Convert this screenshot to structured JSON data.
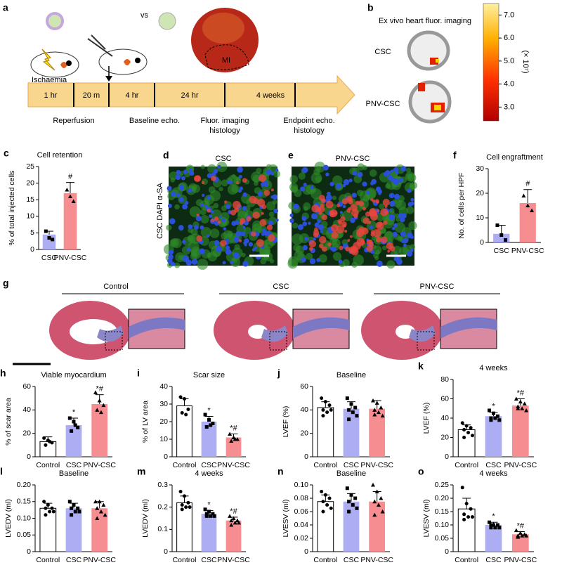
{
  "timeline": {
    "panel": "a",
    "vs": "vs",
    "ischaemia": "Ischaemia",
    "mi": "MI",
    "segments": [
      "1 hr",
      "20 m",
      "4 hr",
      "24 hr",
      "4 weeks"
    ],
    "events": [
      [
        "Reperfusion"
      ],
      [
        "Baseline echo."
      ],
      [
        "Fluor. imaging",
        "histology"
      ],
      [
        "Endpoint echo.",
        "histology"
      ]
    ]
  },
  "imaging": {
    "panel": "b",
    "title": "Ex vivo heart fluor. imaging",
    "rows": [
      "CSC",
      "PNV-CSC"
    ],
    "colorbar": {
      "range": [
        2.4,
        7.5
      ],
      "ticks": [
        {
          "value": 7,
          "label": "7.0"
        },
        {
          "value": 6,
          "label": "6.0"
        },
        {
          "value": 5,
          "label": "5.0"
        },
        {
          "value": 4,
          "label": "4.0"
        },
        {
          "value": 3,
          "label": "3.0"
        }
      ],
      "unit": "(× 10⁷)"
    }
  },
  "micrographs": {
    "stain": "CSC DAPI α-SA",
    "panels": [
      {
        "panel": "d",
        "title": "CSC"
      },
      {
        "panel": "e",
        "title": "PNV-CSC"
      }
    ]
  },
  "histology": {
    "panel": "g",
    "groups": [
      "Control",
      "CSC",
      "PNV-CSC"
    ]
  },
  "chart_data": [
    {
      "type": "bar",
      "panel": "c",
      "title": "Cell retention",
      "ylabel": "% of total injected cells",
      "categories": [
        "CSC",
        "PNV-CSC"
      ],
      "values": [
        4.5,
        17
      ],
      "errors": [
        1,
        3.2
      ],
      "points": [
        [
          5.5,
          3.5,
          3
        ],
        [
          18,
          16,
          14.5
        ]
      ],
      "colors": [
        "#a9a9f2",
        "#f4878b"
      ],
      "annotations": [
        null,
        "#"
      ],
      "ylim": [
        0,
        25
      ],
      "yticks": [
        0,
        5,
        10,
        15,
        20,
        25
      ]
    },
    {
      "type": "bar",
      "panel": "f",
      "title": "Cell engraftment",
      "ylabel": "No. of cells per HPF",
      "categories": [
        "CSC",
        "PNV-CSC"
      ],
      "values": [
        3.5,
        16
      ],
      "errors": [
        3.5,
        5.5
      ],
      "points": [
        [
          7,
          3,
          1
        ],
        [
          19,
          15,
          13
        ]
      ],
      "colors": [
        "#a9a9f2",
        "#f4878b"
      ],
      "annotations": [
        null,
        "#"
      ],
      "ylim": [
        0,
        30
      ],
      "yticks": [
        0,
        10,
        20,
        30
      ]
    },
    {
      "type": "bar",
      "panel": "h",
      "title": "Viable myocardium",
      "ylabel": "% of scar area",
      "categories": [
        "Control",
        "CSC",
        "PNV-CSC"
      ],
      "values": [
        13,
        27,
        45
      ],
      "errors": [
        4,
        6,
        8
      ],
      "points": [
        [
          16,
          14,
          12,
          10,
          13
        ],
        [
          33,
          30,
          25,
          22,
          27
        ],
        [
          55,
          48,
          44,
          40,
          38
        ]
      ],
      "colors": [
        "#ffffff",
        "#a9a9f2",
        "#f4878b"
      ],
      "annotations": [
        null,
        "*",
        "*#"
      ],
      "ylim": [
        0,
        60
      ],
      "yticks": [
        0,
        20,
        40,
        60
      ]
    },
    {
      "type": "bar",
      "panel": "i",
      "title": "Scar size",
      "ylabel": "% of LV area",
      "categories": [
        "Control",
        "CSC",
        "PNV-CSC"
      ],
      "values": [
        29,
        20,
        11
      ],
      "errors": [
        4,
        3,
        2
      ],
      "points": [
        [
          34,
          33,
          27,
          25,
          24
        ],
        [
          24,
          21,
          19,
          17,
          18
        ],
        [
          13,
          11,
          10,
          9,
          10
        ]
      ],
      "colors": [
        "#ffffff",
        "#a9a9f2",
        "#f4878b"
      ],
      "annotations": [
        null,
        "*",
        "*#"
      ],
      "ylim": [
        0,
        40
      ],
      "yticks": [
        0,
        10,
        20,
        30,
        40
      ]
    },
    {
      "type": "bar",
      "panel": "j",
      "title": "Baseline",
      "ylabel": "LVEF (%)",
      "categories": [
        "Control",
        "CSC",
        "PNV-CSC"
      ],
      "values": [
        42,
        41,
        41
      ],
      "errors": [
        5,
        6,
        7
      ],
      "points": [
        [
          50,
          47,
          44,
          40,
          38,
          40,
          35
        ],
        [
          50,
          45,
          42,
          40,
          38,
          35,
          32
        ],
        [
          48,
          46,
          42,
          40,
          38,
          35,
          36
        ]
      ],
      "colors": [
        "#ffffff",
        "#a9a9f2",
        "#f4878b"
      ],
      "annotations": [
        null,
        null,
        null
      ],
      "ylim": [
        0,
        60
      ],
      "yticks": [
        0,
        20,
        40,
        60
      ]
    },
    {
      "type": "bar",
      "panel": "k",
      "title": "4 weeks",
      "ylabel": "LVEF (%)",
      "categories": [
        "Control",
        "CSC",
        "PNV-CSC"
      ],
      "values": [
        28,
        42,
        53
      ],
      "errors": [
        5,
        4,
        7
      ],
      "points": [
        [
          35,
          32,
          30,
          28,
          25,
          22,
          20
        ],
        [
          48,
          45,
          42,
          40,
          40,
          38,
          38
        ],
        [
          60,
          57,
          55,
          52,
          50,
          48,
          50
        ]
      ],
      "colors": [
        "#ffffff",
        "#a9a9f2",
        "#f4878b"
      ],
      "annotations": [
        null,
        "*",
        "*#"
      ],
      "ylim": [
        0,
        80
      ],
      "yticks": [
        0,
        20,
        40,
        60,
        80
      ]
    },
    {
      "type": "bar",
      "panel": "l",
      "title": "Baseline",
      "ylabel": "LVEDV (ml)",
      "categories": [
        "Control",
        "CSC",
        "PNV-CSC"
      ],
      "values": [
        0.13,
        0.13,
        0.13
      ],
      "errors": [
        0.015,
        0.015,
        0.02
      ],
      "points": [
        [
          0.15,
          0.14,
          0.13,
          0.13,
          0.12,
          0.12,
          0.11
        ],
        [
          0.15,
          0.14,
          0.13,
          0.13,
          0.12,
          0.12,
          0.11
        ],
        [
          0.15,
          0.15,
          0.14,
          0.13,
          0.12,
          0.11,
          0.1
        ]
      ],
      "colors": [
        "#ffffff",
        "#a9a9f2",
        "#f4878b"
      ],
      "annotations": [
        null,
        null,
        null
      ],
      "ylim": [
        0,
        0.2
      ],
      "yticks": [
        0,
        0.05,
        {
          "value": 0.1,
          "label": "0.10"
        },
        0.15,
        {
          "value": 0.2,
          "label": "0.20"
        }
      ]
    },
    {
      "type": "bar",
      "panel": "m",
      "title": "4 weeks",
      "ylabel": "LVEDV (ml)",
      "categories": [
        "Control",
        "CSC",
        "PNV-CSC"
      ],
      "values": [
        0.22,
        0.17,
        0.14
      ],
      "errors": [
        0.03,
        0.015,
        0.015
      ],
      "points": [
        [
          0.27,
          0.25,
          0.22,
          0.21,
          0.2,
          0.2,
          0.19
        ],
        [
          0.19,
          0.18,
          0.17,
          0.17,
          0.16,
          0.16,
          0.16
        ],
        [
          0.16,
          0.15,
          0.14,
          0.14,
          0.13,
          0.13,
          0.12
        ]
      ],
      "colors": [
        "#ffffff",
        "#a9a9f2",
        "#f4878b"
      ],
      "annotations": [
        null,
        "*",
        "*#"
      ],
      "ylim": [
        0,
        0.3
      ],
      "yticks": [
        0,
        0.1,
        0.2,
        0.3
      ]
    },
    {
      "type": "bar",
      "panel": "n",
      "title": "Baseline",
      "ylabel": "LVESV (ml)",
      "categories": [
        "Control",
        "CSC",
        "PNV-CSC"
      ],
      "values": [
        0.075,
        0.075,
        0.075
      ],
      "errors": [
        0.01,
        0.012,
        0.015
      ],
      "points": [
        [
          0.09,
          0.085,
          0.08,
          0.075,
          0.07,
          0.065,
          0.06
        ],
        [
          0.095,
          0.085,
          0.08,
          0.075,
          0.07,
          0.065,
          0.06
        ],
        [
          0.1,
          0.09,
          0.08,
          0.075,
          0.07,
          0.06,
          0.055
        ]
      ],
      "colors": [
        "#ffffff",
        "#a9a9f2",
        "#f4878b"
      ],
      "annotations": [
        null,
        null,
        null
      ],
      "ylim": [
        0,
        0.1
      ],
      "yticks": [
        0,
        0.02,
        0.04,
        0.06,
        0.08,
        {
          "value": 0.1,
          "label": "0.10"
        }
      ]
    },
    {
      "type": "bar",
      "panel": "o",
      "title": "4 weeks",
      "ylabel": "LVESV (ml)",
      "categories": [
        "Control",
        "CSC",
        "PNV-CSC"
      ],
      "values": [
        0.16,
        0.1,
        0.065
      ],
      "errors": [
        0.04,
        0.01,
        0.01
      ],
      "points": [
        [
          0.24,
          0.18,
          0.16,
          0.14,
          0.13,
          0.13,
          0.12
        ],
        [
          0.11,
          0.1,
          0.1,
          0.1,
          0.09,
          0.09,
          0.09
        ],
        [
          0.08,
          0.07,
          0.065,
          0.06,
          0.06,
          0.06,
          0.055
        ]
      ],
      "colors": [
        "#ffffff",
        "#a9a9f2",
        "#f4878b"
      ],
      "annotations": [
        null,
        "*",
        "*#"
      ],
      "ylim": [
        0,
        0.25
      ],
      "yticks": [
        0,
        0.05,
        {
          "value": 0.1,
          "label": "0.10"
        },
        0.15,
        {
          "value": 0.2,
          "label": "0.20"
        },
        0.25
      ]
    }
  ]
}
